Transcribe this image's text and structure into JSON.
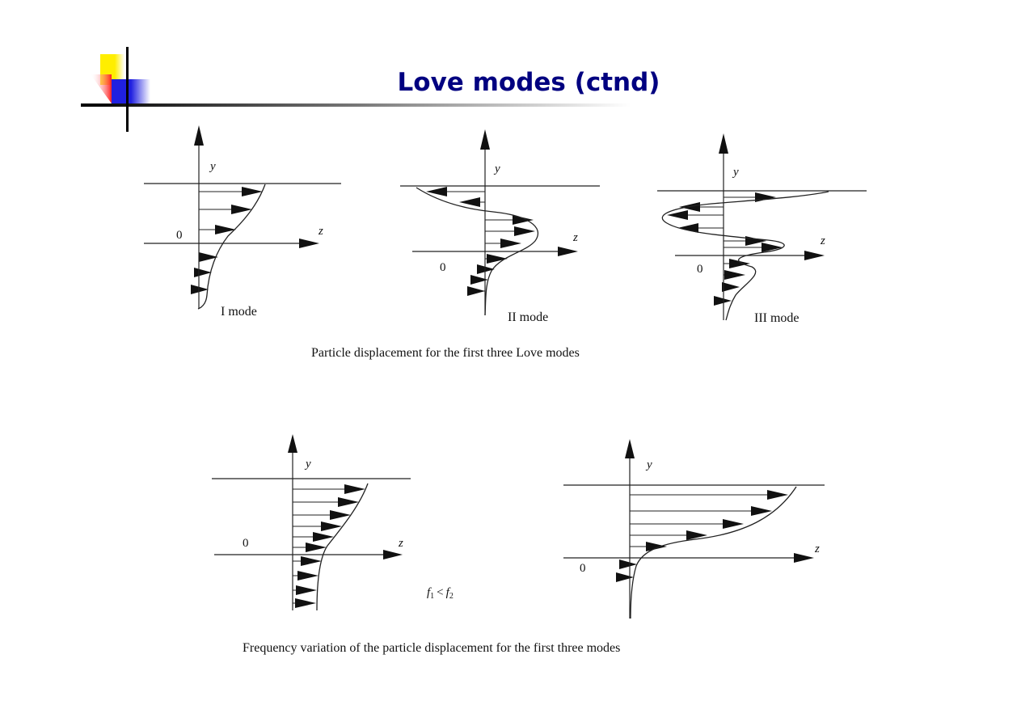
{
  "slide": {
    "title": "Love modes (ctnd)",
    "accent_colors": {
      "title": "#000080",
      "yellow": "#ffee00",
      "red": "#ff3030",
      "blue": "#2020e0"
    }
  },
  "figure1": {
    "caption": "Particle displacement for the first three Love modes",
    "panels": [
      {
        "mode_label": "I mode",
        "y_label": "y",
        "z_label": "z",
        "origin_label": "0"
      },
      {
        "mode_label": "II mode",
        "y_label": "y",
        "z_label": "z",
        "origin_label": "0"
      },
      {
        "mode_label": "III mode",
        "y_label": "y",
        "z_label": "z",
        "origin_label": "0"
      }
    ]
  },
  "figure2": {
    "caption": "Frequency variation of the particle displacement for the first three modes",
    "relation": {
      "f1": "f",
      "sub1": "1",
      "lt": "<",
      "f2": "f",
      "sub2": "2"
    },
    "panels": [
      {
        "y_label": "y",
        "z_label": "z",
        "origin_label": "0"
      },
      {
        "y_label": "y",
        "z_label": "z",
        "origin_label": "0"
      }
    ]
  }
}
